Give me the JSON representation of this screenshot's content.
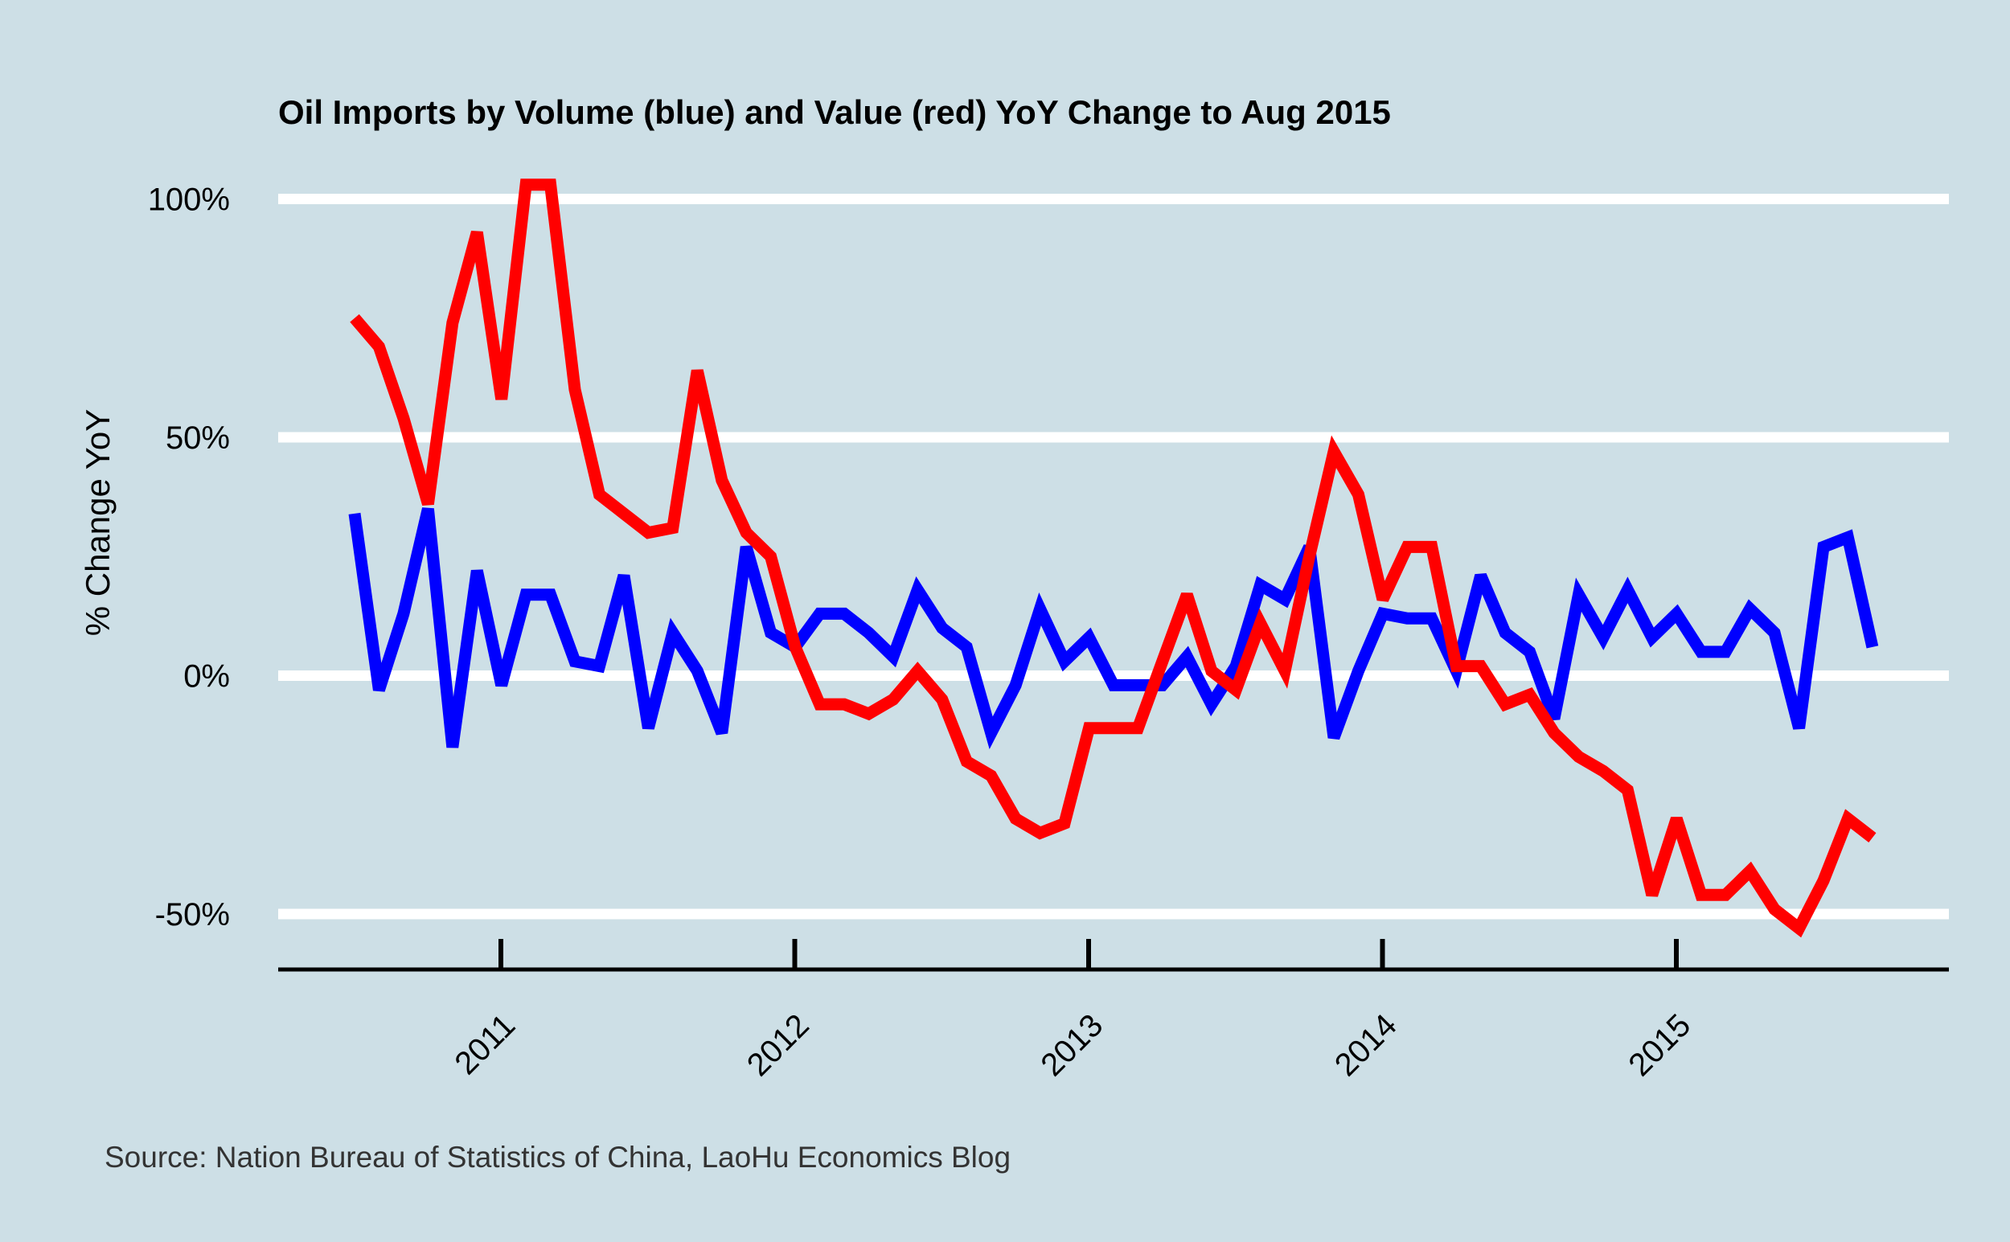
{
  "chart_data": {
    "type": "line",
    "title": "Oil Imports by Volume (blue) and Value (red) YoY Change to Aug 2015",
    "xlabel": "",
    "ylabel": "% Change YoY",
    "source": "Source: Nation Bureau of Statistics of China, LaoHu Economics Blog",
    "x": [
      "2010-07",
      "2010-08",
      "2010-09",
      "2010-10",
      "2010-11",
      "2010-12",
      "2011-01",
      "2011-02",
      "2011-03",
      "2011-04",
      "2011-05",
      "2011-06",
      "2011-07",
      "2011-08",
      "2011-09",
      "2011-10",
      "2011-11",
      "2011-12",
      "2012-01",
      "2012-02",
      "2012-03",
      "2012-04",
      "2012-05",
      "2012-06",
      "2012-07",
      "2012-08",
      "2012-09",
      "2012-10",
      "2012-11",
      "2012-12",
      "2013-01",
      "2013-02",
      "2013-03",
      "2013-04",
      "2013-05",
      "2013-06",
      "2013-07",
      "2013-08",
      "2013-09",
      "2013-10",
      "2013-11",
      "2013-12",
      "2014-01",
      "2014-02",
      "2014-03",
      "2014-04",
      "2014-05",
      "2014-06",
      "2014-07",
      "2014-08",
      "2014-09",
      "2014-10",
      "2014-11",
      "2014-12",
      "2015-01",
      "2015-02",
      "2015-03",
      "2015-04",
      "2015-05",
      "2015-06",
      "2015-07",
      "2015-08",
      "2015-09"
    ],
    "xticks": [
      "2011",
      "2012",
      "2013",
      "2014",
      "2015"
    ],
    "ylim": [
      -61,
      104
    ],
    "yticks": [
      -50,
      0,
      50,
      100
    ],
    "ytick_labels": [
      "-50%",
      "0%",
      "50%",
      "100%"
    ],
    "grid": "horizontal",
    "series": [
      {
        "color": "#0000ff",
        "values": [
          34,
          -3,
          13,
          35,
          -15,
          22,
          -2,
          17,
          17,
          3,
          2,
          21,
          -11,
          9,
          1,
          -12,
          27,
          9,
          6,
          13,
          13,
          9,
          4,
          18,
          10,
          6,
          -12,
          -2,
          14,
          3,
          8,
          -2,
          -2,
          -2,
          4,
          -6,
          2,
          19,
          16,
          27,
          -13,
          1,
          13,
          12,
          12,
          1,
          21,
          9,
          5,
          -9,
          17,
          8,
          18,
          8,
          13,
          5,
          5,
          14,
          9,
          -11,
          27,
          29,
          6
        ]
      },
      {
        "color": "#ff0000",
        "values": [
          75,
          69,
          54,
          36,
          74,
          93,
          58,
          103,
          103,
          60,
          38,
          34,
          30,
          31,
          64,
          41,
          30,
          25,
          6,
          -6,
          -6,
          -8,
          -5,
          1,
          -5,
          -18,
          -21,
          -30,
          -33,
          -31,
          -11,
          -11,
          -11,
          3,
          17,
          1,
          -3,
          11,
          1,
          25,
          47,
          38,
          16,
          27,
          27,
          2,
          2,
          -6,
          -4,
          -12,
          -17,
          -20,
          -24,
          -46,
          -30,
          -46,
          -46,
          -41,
          -49,
          -53,
          -43,
          -30,
          -34
        ]
      }
    ]
  }
}
